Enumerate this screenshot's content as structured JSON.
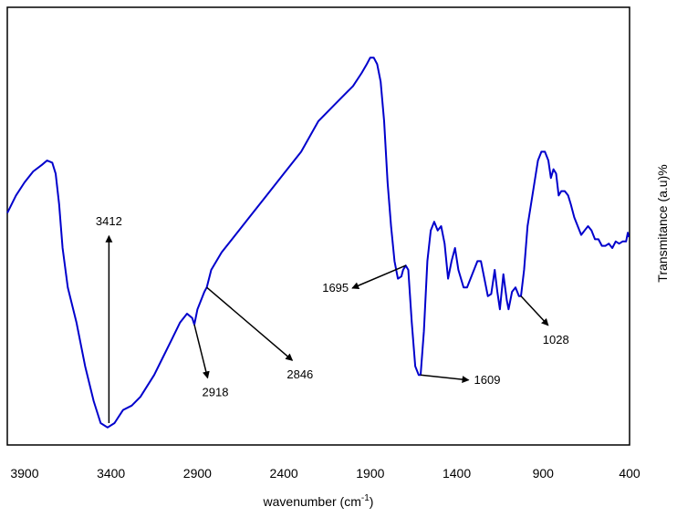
{
  "chart_data": {
    "type": "line",
    "title": "",
    "xlabel": "wavenumber (cm",
    "xlabel_sup": "-1",
    "xlabel_suffix": ")",
    "ylabel": "Transmitance (a.u)%",
    "xlim": [
      4000,
      400
    ],
    "ylim": [
      0,
      100
    ],
    "x_reversed": true,
    "grid": false,
    "x_ticks": [
      3900,
      3400,
      2900,
      2400,
      1900,
      1400,
      900,
      400
    ],
    "series": [
      {
        "color": "#0000cc",
        "points": [
          [
            4000,
            53
          ],
          [
            3950,
            57
          ],
          [
            3900,
            60
          ],
          [
            3850,
            62.5
          ],
          [
            3800,
            64
          ],
          [
            3770,
            65
          ],
          [
            3740,
            64.5
          ],
          [
            3720,
            62
          ],
          [
            3700,
            55
          ],
          [
            3680,
            45
          ],
          [
            3650,
            36
          ],
          [
            3600,
            28
          ],
          [
            3550,
            18
          ],
          [
            3500,
            10
          ],
          [
            3460,
            5
          ],
          [
            3420,
            4
          ],
          [
            3380,
            5
          ],
          [
            3330,
            8
          ],
          [
            3280,
            9
          ],
          [
            3230,
            11
          ],
          [
            3150,
            16
          ],
          [
            3100,
            20
          ],
          [
            3050,
            24
          ],
          [
            3000,
            28
          ],
          [
            2960,
            30
          ],
          [
            2930,
            29
          ],
          [
            2918,
            27.5
          ],
          [
            2900,
            31
          ],
          [
            2880,
            33
          ],
          [
            2860,
            35
          ],
          [
            2846,
            36
          ],
          [
            2820,
            40
          ],
          [
            2760,
            44
          ],
          [
            2700,
            47
          ],
          [
            2600,
            52
          ],
          [
            2500,
            57
          ],
          [
            2400,
            62
          ],
          [
            2300,
            67
          ],
          [
            2200,
            74
          ],
          [
            2100,
            78
          ],
          [
            2000,
            82
          ],
          [
            1950,
            85
          ],
          [
            1920,
            87
          ],
          [
            1900,
            88.5
          ],
          [
            1880,
            88.5
          ],
          [
            1860,
            87
          ],
          [
            1840,
            83
          ],
          [
            1820,
            74
          ],
          [
            1800,
            60
          ],
          [
            1780,
            50
          ],
          [
            1760,
            42
          ],
          [
            1740,
            38
          ],
          [
            1720,
            38.5
          ],
          [
            1710,
            40
          ],
          [
            1695,
            41
          ],
          [
            1680,
            40
          ],
          [
            1660,
            28
          ],
          [
            1640,
            18
          ],
          [
            1620,
            16
          ],
          [
            1609,
            16
          ],
          [
            1590,
            26
          ],
          [
            1570,
            42
          ],
          [
            1550,
            49
          ],
          [
            1530,
            51
          ],
          [
            1510,
            49
          ],
          [
            1490,
            50
          ],
          [
            1470,
            46
          ],
          [
            1450,
            38
          ],
          [
            1430,
            42
          ],
          [
            1410,
            45
          ],
          [
            1390,
            40
          ],
          [
            1360,
            36
          ],
          [
            1340,
            36
          ],
          [
            1310,
            39
          ],
          [
            1280,
            42
          ],
          [
            1260,
            42
          ],
          [
            1240,
            38
          ],
          [
            1220,
            34
          ],
          [
            1200,
            34.5
          ],
          [
            1180,
            40
          ],
          [
            1165,
            35
          ],
          [
            1150,
            31
          ],
          [
            1130,
            39
          ],
          [
            1110,
            33
          ],
          [
            1100,
            31
          ],
          [
            1080,
            35
          ],
          [
            1060,
            36
          ],
          [
            1040,
            34
          ],
          [
            1028,
            34
          ],
          [
            1010,
            40
          ],
          [
            990,
            50
          ],
          [
            970,
            55
          ],
          [
            950,
            60
          ],
          [
            930,
            65
          ],
          [
            910,
            67
          ],
          [
            890,
            67
          ],
          [
            870,
            65
          ],
          [
            855,
            61
          ],
          [
            840,
            63
          ],
          [
            825,
            62
          ],
          [
            810,
            57
          ],
          [
            795,
            58
          ],
          [
            775,
            58
          ],
          [
            755,
            57
          ],
          [
            740,
            55
          ],
          [
            720,
            52
          ],
          [
            700,
            50
          ],
          [
            680,
            48
          ],
          [
            660,
            49
          ],
          [
            640,
            50
          ],
          [
            620,
            49
          ],
          [
            600,
            47
          ],
          [
            580,
            47
          ],
          [
            560,
            45.5
          ],
          [
            540,
            45.5
          ],
          [
            520,
            46
          ],
          [
            500,
            45
          ],
          [
            480,
            46.5
          ],
          [
            460,
            46
          ],
          [
            440,
            46.5
          ],
          [
            420,
            46.5
          ],
          [
            410,
            48.5
          ],
          [
            405,
            47.5
          ]
        ]
      }
    ],
    "annotations": [
      {
        "label": "3412",
        "point": [
          3412,
          5
        ],
        "arrow": "up",
        "text_pos": [
          3412,
          49
        ]
      },
      {
        "label": "2918",
        "point": [
          2918,
          27.5
        ],
        "arrow": "down-right",
        "text_pos": [
          2820,
          12
        ]
      },
      {
        "label": "2846",
        "point": [
          2846,
          36
        ],
        "arrow": "down-right",
        "text_pos": [
          2330,
          16
        ]
      },
      {
        "label": "1695",
        "point": [
          1695,
          41
        ],
        "arrow": "left",
        "text_pos": [
          2120,
          35
        ]
      },
      {
        "label": "1609",
        "point": [
          1609,
          16
        ],
        "arrow": "right",
        "text_pos": [
          1300,
          14
        ]
      },
      {
        "label": "1028",
        "point": [
          1028,
          34
        ],
        "arrow": "down-right",
        "text_pos": [
          850,
          24
        ]
      }
    ]
  }
}
